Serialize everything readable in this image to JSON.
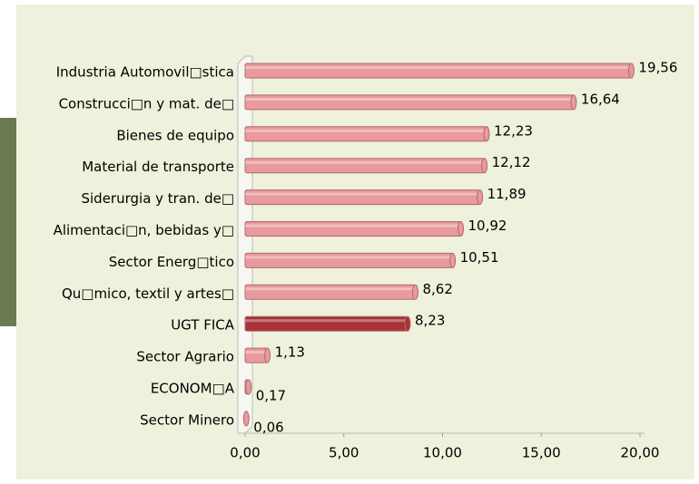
{
  "chart_data": {
    "type": "bar",
    "orientation": "horizontal",
    "categories": [
      "Industria Automovil□stica",
      "Construcci□n y mat. de□",
      "Bienes de equipo",
      "Material de transporte",
      "Siderurgia y tran. de□",
      "Alimentaci□n, bebidas y□",
      "Sector Energ□tico",
      "Qu□mico, textil y artes□",
      "UGT FICA",
      "Sector Agrario",
      "ECONOM□A",
      "Sector Minero"
    ],
    "values": [
      19.56,
      16.64,
      12.23,
      12.12,
      11.89,
      10.92,
      10.51,
      8.62,
      8.23,
      1.13,
      0.17,
      0.06
    ],
    "value_labels": [
      "19,56",
      "16,64",
      "12,23",
      "12,12",
      "11,89",
      "10,92",
      "10,51",
      "8,62",
      "8,23",
      "1,13",
      "0,17",
      "0,06"
    ],
    "colors": [
      "#e99a9c",
      "#e99a9c",
      "#e99a9c",
      "#e99a9c",
      "#e99a9c",
      "#e99a9c",
      "#e99a9c",
      "#e99a9c",
      "#a83236",
      "#e99a9c",
      "#e99a9c",
      "#e99a9c"
    ],
    "xlim": [
      0,
      20
    ],
    "xticks": [
      {
        "value": 0,
        "label": "0,00"
      },
      {
        "value": 5,
        "label": "5,00"
      },
      {
        "value": 10,
        "label": "10,00"
      },
      {
        "value": 15,
        "label": "15,00"
      },
      {
        "value": 20,
        "label": "20,00"
      }
    ]
  }
}
